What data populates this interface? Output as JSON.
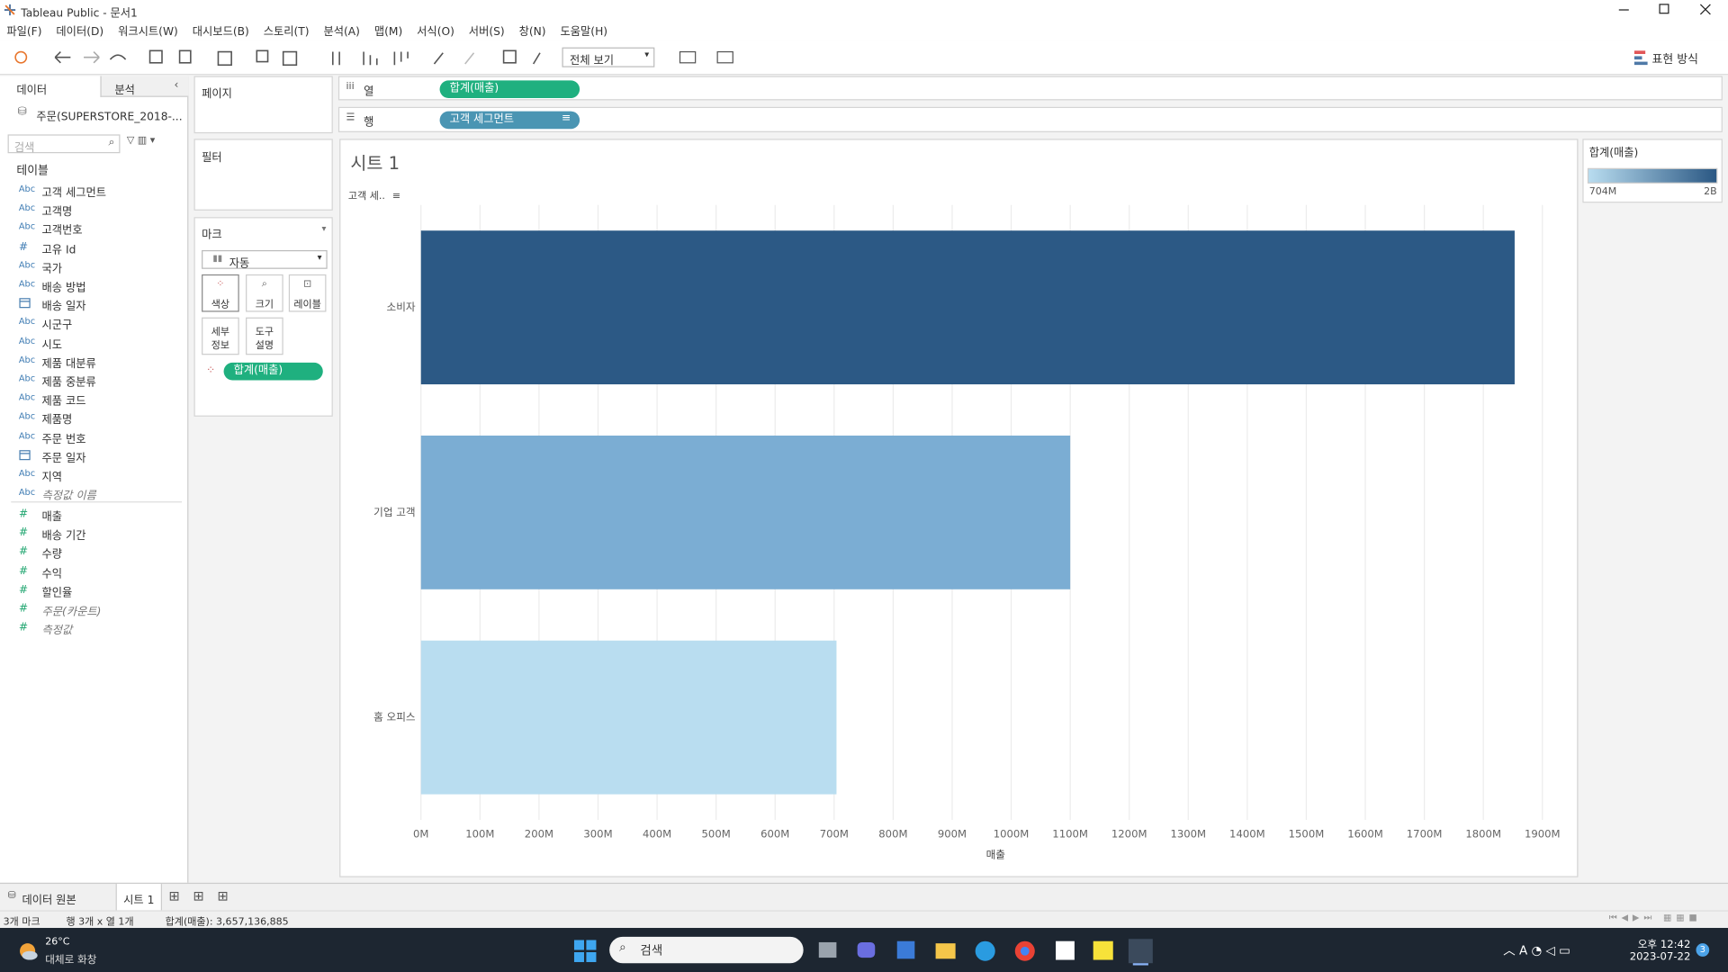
{
  "window": {
    "title": "Tableau Public - 문서1"
  },
  "menu": [
    "파일(F)",
    "데이터(D)",
    "워크시트(W)",
    "대시보드(B)",
    "스토리(T)",
    "분석(A)",
    "맵(M)",
    "서식(O)",
    "서버(S)",
    "창(N)",
    "도움말(H)"
  ],
  "toolbar": {
    "view_fit": "전체 보기",
    "show_me": "표현 방식"
  },
  "data_pane": {
    "tabs": [
      "데이터",
      "분석"
    ],
    "source": "주문(SUPERSTORE_2018-...",
    "search_placeholder": "검색",
    "tables_header": "테이블",
    "dimensions": [
      {
        "icon": "Abc",
        "name": "고객 세그먼트"
      },
      {
        "icon": "Abc",
        "name": "고객명"
      },
      {
        "icon": "Abc",
        "name": "고객번호"
      },
      {
        "icon": "#",
        "name": "고유 Id"
      },
      {
        "icon": "Abc",
        "name": "국가"
      },
      {
        "icon": "Abc",
        "name": "배송 방법"
      },
      {
        "icon": null,
        "name": "배송 일자"
      },
      {
        "icon": "Abc",
        "name": "시군구"
      },
      {
        "icon": "Abc",
        "name": "시도"
      },
      {
        "icon": "Abc",
        "name": "제품 대분류"
      },
      {
        "icon": "Abc",
        "name": "제품 중분류"
      },
      {
        "icon": "Abc",
        "name": "제품 코드"
      },
      {
        "icon": "Abc",
        "name": "제품명"
      },
      {
        "icon": "Abc",
        "name": "주문 번호"
      },
      {
        "icon": null,
        "name": "주문 일자"
      },
      {
        "icon": "Abc",
        "name": "지역"
      },
      {
        "icon": "Abc",
        "name": "측정값 이름",
        "italic": true
      }
    ],
    "measures": [
      {
        "icon": "#",
        "name": "매출"
      },
      {
        "icon": "#",
        "name": "배송 기간"
      },
      {
        "icon": "#",
        "name": "수량"
      },
      {
        "icon": "#",
        "name": "수익"
      },
      {
        "icon": "#",
        "name": "할인율"
      },
      {
        "icon": "#",
        "name": "주문(카운트)",
        "italic": true
      },
      {
        "icon": "#",
        "name": "측정값",
        "italic": true
      }
    ]
  },
  "cards": {
    "pages": "페이지",
    "filters": "필터",
    "marks": "마크",
    "mark_type": "자동",
    "mark_buttons": [
      [
        "색상"
      ],
      [
        "크기"
      ],
      [
        "레이블"
      ],
      [
        "세부",
        "정보"
      ],
      [
        "도구",
        "설명"
      ]
    ],
    "marks_pill": "합계(매출)"
  },
  "shelves": {
    "columns_label": "열",
    "columns_pill": "합계(매출)",
    "rows_label": "행",
    "rows_pill": "고객 세그먼트"
  },
  "chart_data": {
    "type": "bar",
    "orientation": "horizontal",
    "title": "시트 1",
    "category_header": "고객 세..",
    "x_label": "매출",
    "categories": [
      "소비자",
      "기업 고객",
      "홈 오피스"
    ],
    "values": [
      1853000000,
      1100000000,
      704000000
    ],
    "colors": [
      "#2c5985",
      "#7badd3",
      "#b9ddf0"
    ],
    "xlim": [
      0,
      1940000000
    ],
    "xticks": [
      {
        "value": 0,
        "label": "0M"
      },
      {
        "value": 100000000,
        "label": "100M"
      },
      {
        "value": 200000000,
        "label": "200M"
      },
      {
        "value": 300000000,
        "label": "300M"
      },
      {
        "value": 400000000,
        "label": "400M"
      },
      {
        "value": 500000000,
        "label": "500M"
      },
      {
        "value": 600000000,
        "label": "600M"
      },
      {
        "value": 700000000,
        "label": "700M"
      },
      {
        "value": 800000000,
        "label": "800M"
      },
      {
        "value": 900000000,
        "label": "900M"
      },
      {
        "value": 1000000000,
        "label": "1000M"
      },
      {
        "value": 1100000000,
        "label": "1100M"
      },
      {
        "value": 1200000000,
        "label": "1200M"
      },
      {
        "value": 1300000000,
        "label": "1300M"
      },
      {
        "value": 1400000000,
        "label": "1400M"
      },
      {
        "value": 1500000000,
        "label": "1500M"
      },
      {
        "value": 1600000000,
        "label": "1600M"
      },
      {
        "value": 1700000000,
        "label": "1700M"
      },
      {
        "value": 1800000000,
        "label": "1800M"
      },
      {
        "value": 1900000000,
        "label": "1900M"
      }
    ],
    "grid": true,
    "legend": {
      "title": "합계(매출)",
      "colors": [
        "#b9ddf0",
        "#2a5783"
      ],
      "range": [
        {
          "value": 704000000,
          "label": "704M"
        },
        {
          "value": 1853000000,
          "label": "2B"
        }
      ]
    }
  },
  "sheet_tabs": [
    "데이터 원본",
    "시트 1"
  ],
  "status": [
    "3개 마크",
    "행 3개 x 열 1개",
    "합계(매출): 3,657,136,885"
  ],
  "taskbar": {
    "temperature": "26°C",
    "weather": "대체로 화창",
    "search": "검색",
    "time": "오후 12:42",
    "date": "2023-07-22",
    "badge": "3"
  }
}
